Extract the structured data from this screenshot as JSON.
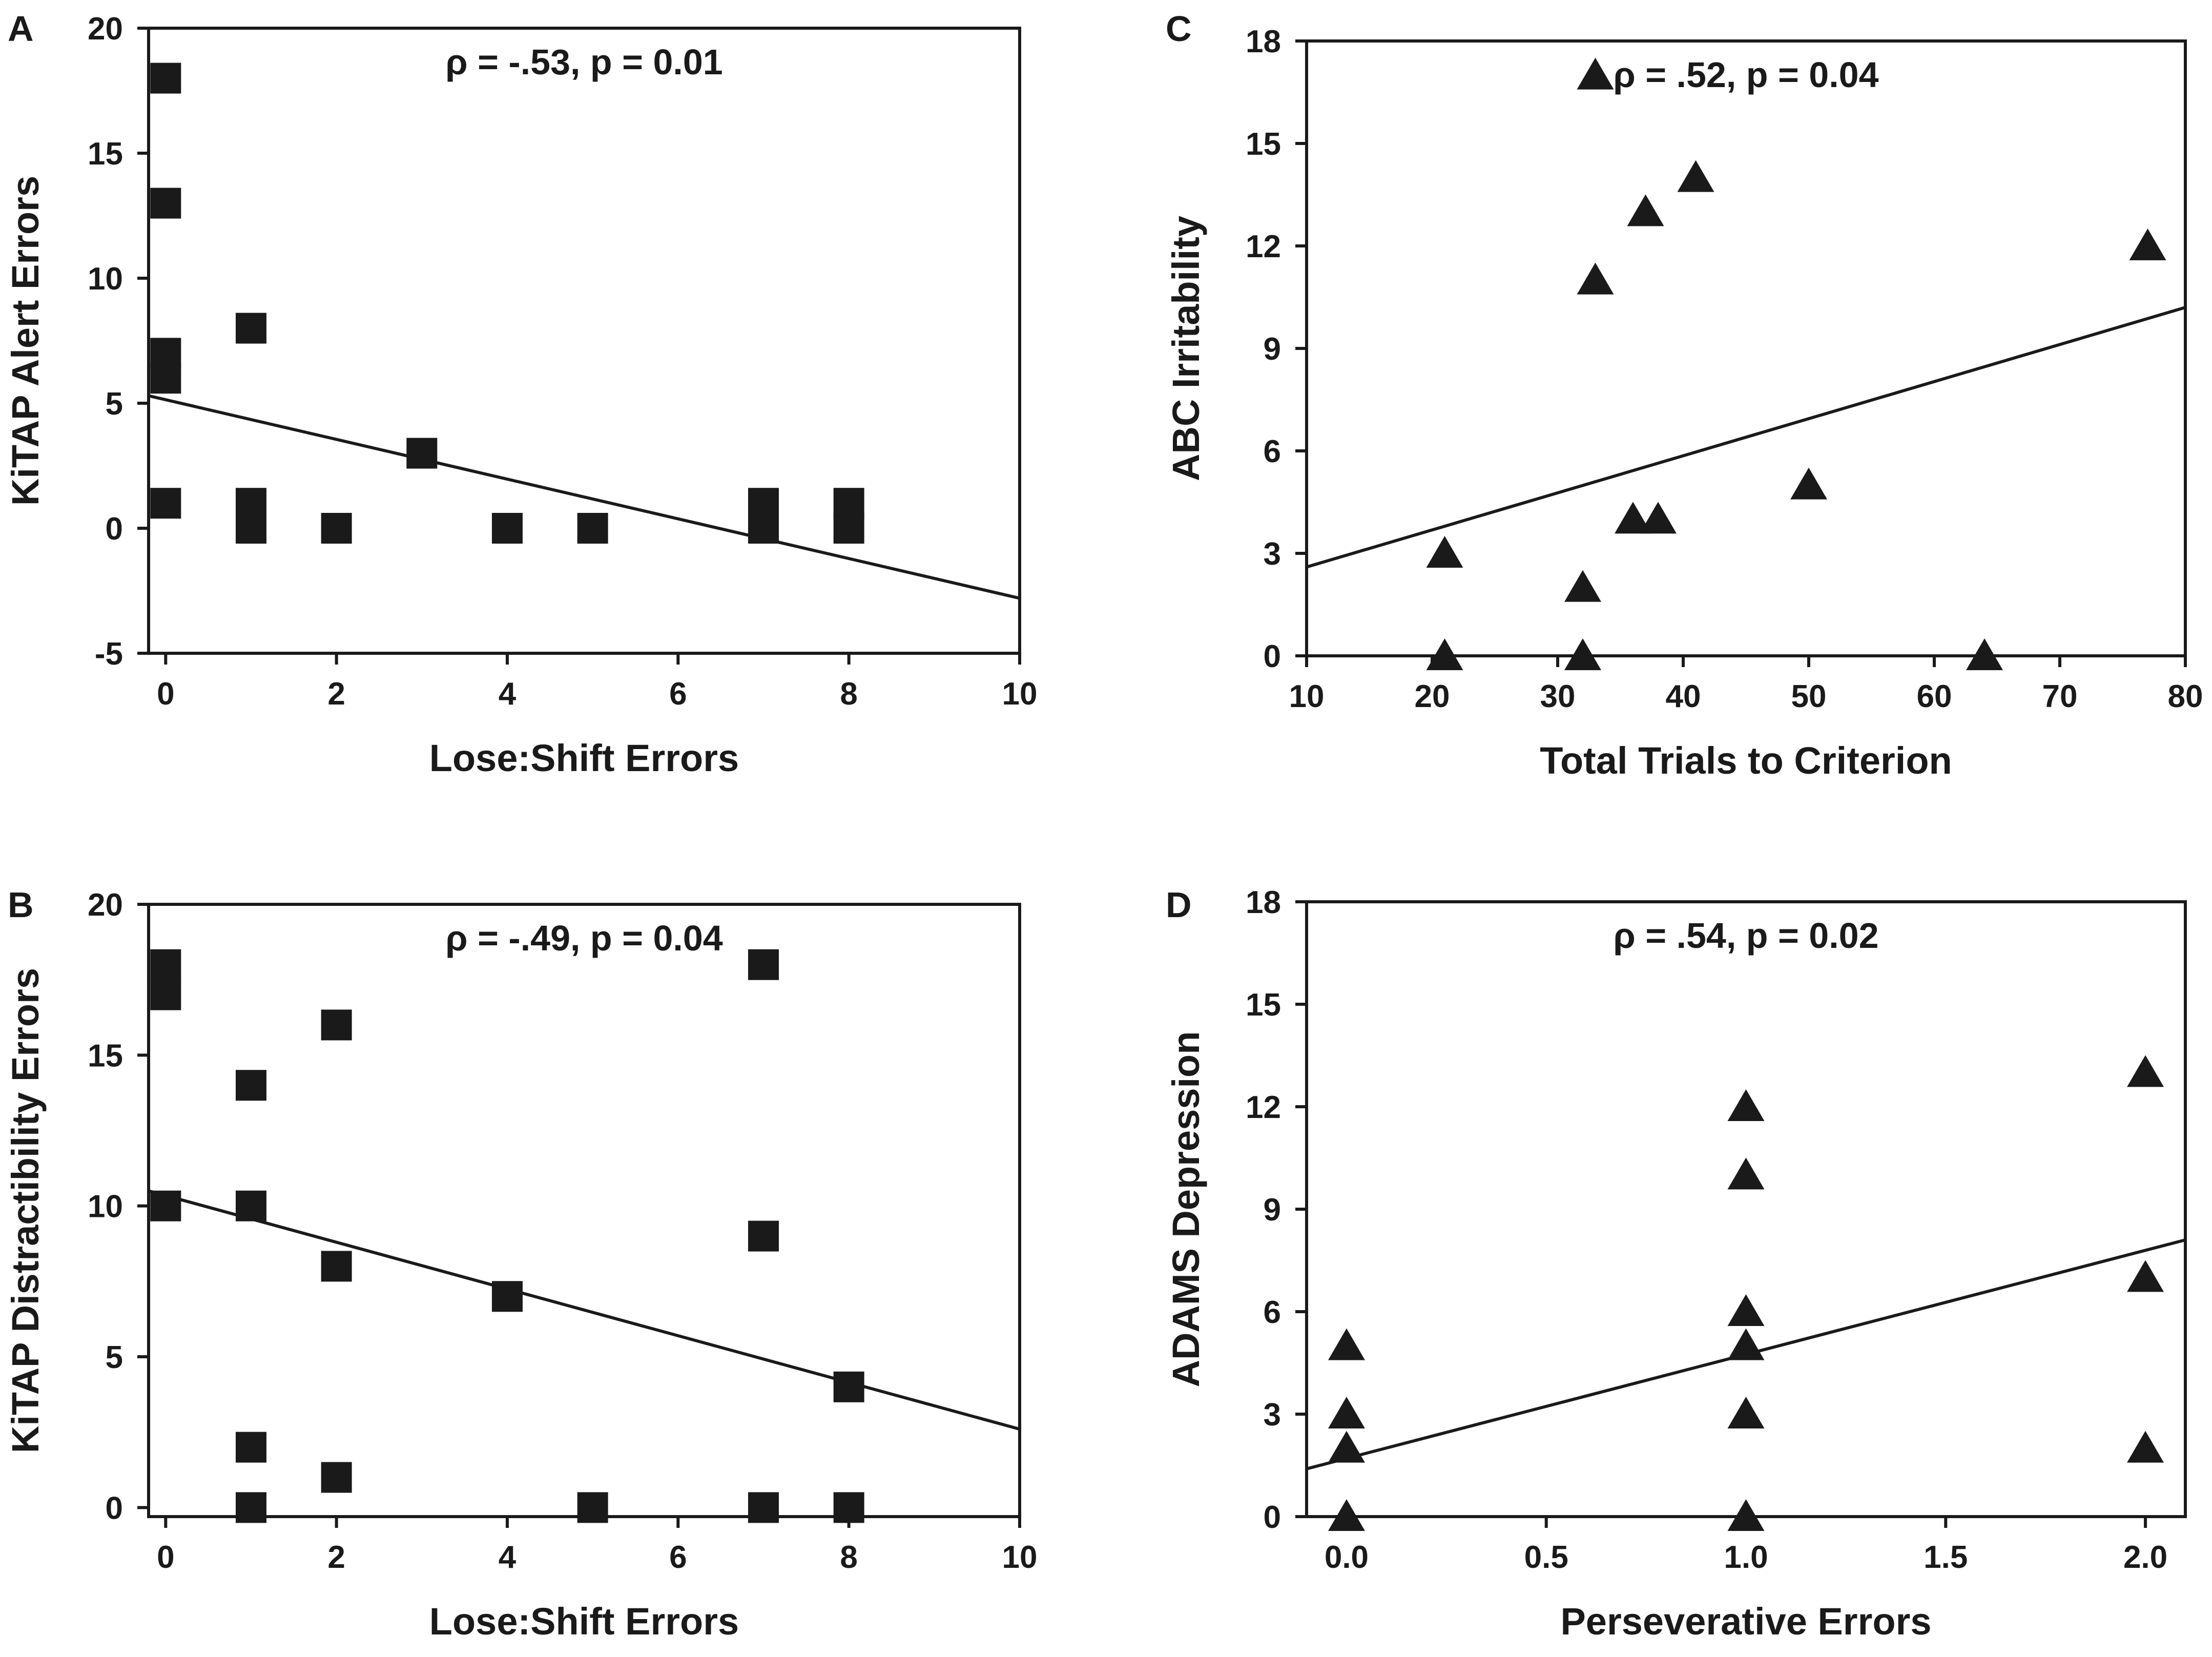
{
  "chart_data": [
    {
      "panel": "A",
      "type": "scatter",
      "marker": "square",
      "annotation": "ρ = -.53, p = 0.01",
      "xlabel": "Lose:Shift Errors",
      "ylabel": "KiTAP Alert Errors",
      "xlim": [
        -0.2,
        10
      ],
      "ylim": [
        -5,
        20
      ],
      "xticks": [
        0,
        2,
        4,
        6,
        8,
        10
      ],
      "yticks": [
        -5,
        0,
        5,
        10,
        15,
        20
      ],
      "points": [
        [
          0,
          18
        ],
        [
          0,
          13
        ],
        [
          0,
          7
        ],
        [
          0,
          6
        ],
        [
          0,
          1
        ],
        [
          1,
          8
        ],
        [
          1,
          1
        ],
        [
          1,
          0
        ],
        [
          2,
          0
        ],
        [
          3,
          3
        ],
        [
          4,
          0
        ],
        [
          5,
          0
        ],
        [
          7,
          1
        ],
        [
          7,
          0
        ],
        [
          8,
          1
        ],
        [
          8,
          0
        ]
      ],
      "fit": [
        [
          -0.2,
          5.3
        ],
        [
          10,
          -2.8
        ]
      ]
    },
    {
      "panel": "B",
      "type": "scatter",
      "marker": "square",
      "annotation": "ρ = -.49, p = 0.04",
      "xlabel": "Lose:Shift Errors",
      "ylabel": "KiTAP Distractibility Errors",
      "xlim": [
        -0.2,
        10
      ],
      "ylim": [
        -0.3,
        20
      ],
      "xticks": [
        0,
        2,
        4,
        6,
        8,
        10
      ],
      "yticks": [
        0,
        5,
        10,
        15,
        20
      ],
      "points": [
        [
          0,
          18
        ],
        [
          0,
          17
        ],
        [
          0,
          10
        ],
        [
          1,
          14
        ],
        [
          1,
          10
        ],
        [
          1,
          2
        ],
        [
          1,
          0
        ],
        [
          2,
          16
        ],
        [
          2,
          8
        ],
        [
          2,
          1
        ],
        [
          4,
          7
        ],
        [
          5,
          0
        ],
        [
          7,
          18
        ],
        [
          7,
          9
        ],
        [
          7,
          0
        ],
        [
          8,
          4
        ],
        [
          8,
          0
        ]
      ],
      "fit": [
        [
          -0.2,
          10.5
        ],
        [
          10,
          2.6
        ]
      ]
    },
    {
      "panel": "C",
      "type": "scatter",
      "marker": "triangle",
      "annotation": "ρ = .52, p = 0.04",
      "xlabel": "Total Trials to Criterion",
      "ylabel": "ABC Irritability",
      "xlim": [
        10,
        80
      ],
      "ylim": [
        0,
        18
      ],
      "xticks": [
        10,
        20,
        30,
        40,
        50,
        60,
        70,
        80
      ],
      "yticks": [
        0,
        3,
        6,
        9,
        12,
        15,
        18
      ],
      "points": [
        [
          21,
          3
        ],
        [
          21,
          0
        ],
        [
          32,
          2
        ],
        [
          32,
          0
        ],
        [
          33,
          17
        ],
        [
          33,
          11
        ],
        [
          36,
          4
        ],
        [
          37,
          13
        ],
        [
          38,
          4
        ],
        [
          41,
          14
        ],
        [
          50,
          5
        ],
        [
          64,
          0
        ],
        [
          77,
          12
        ]
      ],
      "fit": [
        [
          10,
          2.6
        ],
        [
          80,
          10.2
        ]
      ]
    },
    {
      "panel": "D",
      "type": "scatter",
      "marker": "triangle",
      "annotation": "ρ = .54, p = 0.02",
      "xlabel": "Perseverative Errors",
      "ylabel": "ADAMS Depression",
      "xlim": [
        -0.1,
        2.1
      ],
      "ylim": [
        0,
        18
      ],
      "xticks": [
        0,
        0.5,
        1,
        1.5,
        2
      ],
      "xtick_labels": [
        "0.0",
        "0.5",
        "1.0",
        "1.5",
        "2.0"
      ],
      "yticks": [
        0,
        3,
        6,
        9,
        12,
        15,
        18
      ],
      "points": [
        [
          0,
          5
        ],
        [
          0,
          3
        ],
        [
          0,
          2
        ],
        [
          0,
          0
        ],
        [
          1,
          12
        ],
        [
          1,
          10
        ],
        [
          1,
          6
        ],
        [
          1,
          5
        ],
        [
          1,
          3
        ],
        [
          1,
          0
        ],
        [
          2,
          13
        ],
        [
          2,
          7
        ],
        [
          2,
          2
        ]
      ],
      "fit": [
        [
          -0.1,
          1.4
        ],
        [
          2.1,
          8.1
        ]
      ]
    }
  ]
}
